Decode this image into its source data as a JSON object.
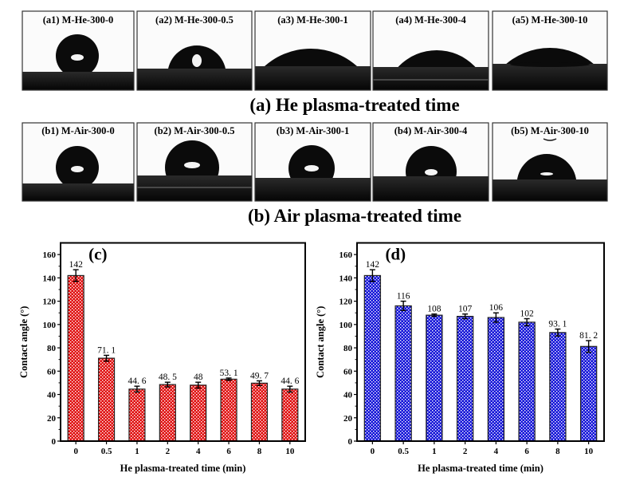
{
  "photos": {
    "row_a": {
      "caption": "(a) He plasma-treated time",
      "panels": [
        "(a1) M-He-300-0",
        "(a2) M-He-300-0.5",
        "(a3) M-He-300-1",
        "(a4) M-He-300-4",
        "(a5) M-He-300-10"
      ]
    },
    "row_b": {
      "caption": "(b) Air plasma-treated time",
      "panels": [
        "(b1) M-Air-300-0",
        "(b2) M-Air-300-0.5",
        "(b3) M-Air-300-1",
        "(b4) M-Air-300-4",
        "(b5) M-Air-300-10"
      ]
    }
  },
  "chart_data": [
    {
      "type": "bar",
      "panel_label": "(c)",
      "categories": [
        "0",
        "0.5",
        "1",
        "2",
        "4",
        "6",
        "8",
        "10"
      ],
      "values": [
        142,
        71.1,
        44.6,
        48.5,
        48,
        53.1,
        49.7,
        44.6
      ],
      "errors": [
        5,
        2.5,
        2.5,
        2,
        2.5,
        1,
        2,
        2.5
      ],
      "data_labels": [
        "142",
        "71. 1",
        "44. 6",
        "48. 5",
        "48",
        "53. 1",
        "49. 7",
        "44. 6"
      ],
      "xlabel": "He plasma-treated time (min)",
      "ylabel": "Contact angle (°)",
      "ylim": [
        0,
        170
      ],
      "yticks": [
        "0",
        "20",
        "40",
        "60",
        "80",
        "100",
        "120",
        "140",
        "160"
      ],
      "grid": false,
      "fill_color": "#e01010",
      "pattern": "white dots"
    },
    {
      "type": "bar",
      "panel_label": "(d)",
      "categories": [
        "0",
        "0.5",
        "1",
        "2",
        "4",
        "6",
        "8",
        "10"
      ],
      "values": [
        142,
        116,
        108,
        107,
        106,
        102,
        93.1,
        81.2
      ],
      "errors": [
        5,
        4,
        1,
        2,
        4,
        3,
        3,
        5
      ],
      "data_labels": [
        "142",
        "116",
        "108",
        "107",
        "106",
        "102",
        "93. 1",
        "81. 2"
      ],
      "xlabel": "He plasma-treated time (min)",
      "ylabel": "Contact angle (°)",
      "ylim": [
        0,
        170
      ],
      "yticks": [
        "0",
        "20",
        "40",
        "60",
        "80",
        "100",
        "120",
        "140",
        "160"
      ],
      "grid": false,
      "fill_color": "#1010e0",
      "pattern": "white dots"
    }
  ]
}
